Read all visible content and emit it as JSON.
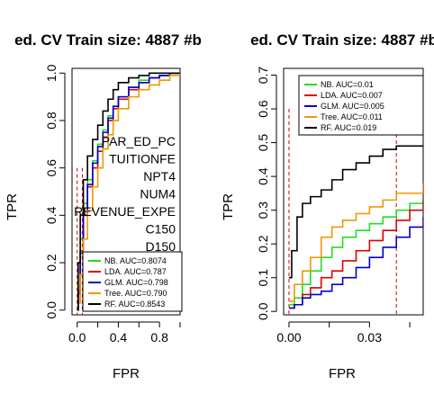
{
  "colors": {
    "NB": "#22dd22",
    "LDA": "#dd0000",
    "GLM": "#0000cc",
    "Tree": "#ee9900",
    "RF": "#000000",
    "ref_line": "#cc0000"
  },
  "chart_data": [
    {
      "type": "line",
      "title": "ed. CV  Train size:  4887  #b",
      "xlabel": "FPR",
      "ylabel": "TPR",
      "xlim": [
        -0.05,
        1.0
      ],
      "ylim": [
        -0.02,
        1.02
      ],
      "xticks": [
        "0.0",
        "0.4",
        "0.8"
      ],
      "xtick_values": [
        0.0,
        0.4,
        0.8
      ],
      "yticks": [
        "0.0",
        "0.2",
        "0.4",
        "0.6",
        "0.8",
        "1.0"
      ],
      "ytick_values": [
        0.0,
        0.2,
        0.4,
        0.6,
        0.8,
        1.0
      ],
      "ref_lines_x": [
        0.0,
        0.05
      ],
      "feature_labels": [
        "PAR_ED_PC",
        "TUITIONFE",
        "NPT4",
        "NUM4",
        "REVENUE_EXPE",
        "C150",
        "D150"
      ],
      "legend_position": "bottom-right",
      "series": [
        {
          "name": "NB. AUC=0.8074",
          "key": "NB",
          "x": [
            0,
            0.01,
            0.03,
            0.06,
            0.1,
            0.15,
            0.2,
            0.25,
            0.3,
            0.35,
            0.4,
            0.5,
            0.6,
            0.7,
            0.8,
            0.9,
            1.0
          ],
          "y": [
            0,
            0.1,
            0.3,
            0.45,
            0.55,
            0.63,
            0.7,
            0.76,
            0.82,
            0.86,
            0.9,
            0.94,
            0.97,
            0.98,
            0.99,
            1.0,
            1.0
          ]
        },
        {
          "name": "LDA. AUC=0.787",
          "key": "LDA",
          "x": [
            0,
            0.01,
            0.03,
            0.06,
            0.1,
            0.15,
            0.2,
            0.25,
            0.3,
            0.35,
            0.4,
            0.5,
            0.6,
            0.7,
            0.8,
            0.9,
            1.0
          ],
          "y": [
            0,
            0.08,
            0.25,
            0.4,
            0.52,
            0.6,
            0.67,
            0.73,
            0.8,
            0.85,
            0.89,
            0.93,
            0.96,
            0.98,
            0.99,
            1.0,
            1.0
          ]
        },
        {
          "name": "GLM. AUC=0.798",
          "key": "GLM",
          "x": [
            0,
            0.01,
            0.03,
            0.06,
            0.1,
            0.15,
            0.2,
            0.25,
            0.3,
            0.35,
            0.4,
            0.5,
            0.6,
            0.7,
            0.8,
            0.9,
            1.0
          ],
          "y": [
            0,
            0.07,
            0.24,
            0.4,
            0.53,
            0.62,
            0.69,
            0.75,
            0.81,
            0.86,
            0.9,
            0.94,
            0.96,
            0.98,
            0.99,
            1.0,
            1.0
          ]
        },
        {
          "name": "Tree. AUC=0.790",
          "key": "Tree",
          "x": [
            0,
            0.01,
            0.03,
            0.06,
            0.1,
            0.15,
            0.2,
            0.25,
            0.3,
            0.35,
            0.4,
            0.5,
            0.6,
            0.7,
            0.8,
            0.9,
            1.0
          ],
          "y": [
            0,
            0.03,
            0.15,
            0.3,
            0.42,
            0.52,
            0.6,
            0.68,
            0.74,
            0.8,
            0.85,
            0.9,
            0.93,
            0.95,
            0.97,
            0.99,
            1.0
          ]
        },
        {
          "name": "RF. AUC=0.8543",
          "key": "RF",
          "x": [
            0,
            0.01,
            0.03,
            0.06,
            0.1,
            0.15,
            0.2,
            0.25,
            0.3,
            0.35,
            0.4,
            0.5,
            0.6,
            0.7,
            0.8,
            0.9,
            1.0
          ],
          "y": [
            0,
            0.2,
            0.4,
            0.55,
            0.65,
            0.72,
            0.78,
            0.84,
            0.89,
            0.93,
            0.96,
            0.98,
            0.99,
            1.0,
            1.0,
            1.0,
            1.0
          ]
        }
      ]
    },
    {
      "type": "line",
      "title": "ed. CV  Train size:  4887  #b",
      "xlabel": "FPR",
      "ylabel": "TPR",
      "xlim": [
        -0.002,
        0.05
      ],
      "ylim": [
        -0.01,
        0.72
      ],
      "xticks": [
        "0.00",
        "0.03"
      ],
      "xtick_values": [
        0.0,
        0.03
      ],
      "yticks": [
        "0.0",
        "0.1",
        "0.2",
        "0.3",
        "0.4",
        "0.5",
        "0.6",
        "0.7"
      ],
      "ytick_values": [
        0.0,
        0.1,
        0.2,
        0.3,
        0.4,
        0.5,
        0.6,
        0.7
      ],
      "ref_lines_x": [
        0.0,
        0.04
      ],
      "legend_position": "top-right",
      "series": [
        {
          "name": "NB. AUC=0.01",
          "key": "NB",
          "x": [
            0,
            0.002,
            0.005,
            0.008,
            0.012,
            0.016,
            0.02,
            0.025,
            0.03,
            0.035,
            0.04,
            0.045,
            0.05
          ],
          "y": [
            0.02,
            0.04,
            0.08,
            0.12,
            0.16,
            0.19,
            0.22,
            0.24,
            0.26,
            0.28,
            0.3,
            0.32,
            0.33
          ]
        },
        {
          "name": "LDA. AUC=0.007",
          "key": "LDA",
          "x": [
            0,
            0.002,
            0.005,
            0.008,
            0.012,
            0.016,
            0.02,
            0.025,
            0.03,
            0.035,
            0.04,
            0.045,
            0.05
          ],
          "y": [
            0.01,
            0.02,
            0.05,
            0.07,
            0.1,
            0.12,
            0.15,
            0.18,
            0.21,
            0.24,
            0.27,
            0.3,
            0.33
          ]
        },
        {
          "name": "GLM. AUC=0.005",
          "key": "GLM",
          "x": [
            0,
            0.002,
            0.005,
            0.008,
            0.012,
            0.016,
            0.02,
            0.025,
            0.03,
            0.035,
            0.04,
            0.045,
            0.05
          ],
          "y": [
            0.01,
            0.02,
            0.04,
            0.05,
            0.06,
            0.08,
            0.1,
            0.13,
            0.16,
            0.19,
            0.22,
            0.25,
            0.28
          ]
        },
        {
          "name": "Tree. AUC=0.011",
          "key": "Tree",
          "x": [
            0,
            0.002,
            0.005,
            0.008,
            0.012,
            0.016,
            0.02,
            0.025,
            0.03,
            0.035,
            0.04,
            0.045,
            0.05
          ],
          "y": [
            0.03,
            0.08,
            0.12,
            0.16,
            0.22,
            0.25,
            0.27,
            0.29,
            0.31,
            0.33,
            0.35,
            0.35,
            0.38
          ]
        },
        {
          "name": "RF. AUC=0.019",
          "key": "RF",
          "x": [
            0,
            0.001,
            0.003,
            0.005,
            0.008,
            0.012,
            0.016,
            0.02,
            0.025,
            0.03,
            0.035,
            0.04,
            0.045,
            0.05
          ],
          "y": [
            0.1,
            0.18,
            0.28,
            0.32,
            0.34,
            0.36,
            0.39,
            0.42,
            0.44,
            0.46,
            0.48,
            0.49,
            0.49,
            0.49
          ]
        }
      ]
    }
  ]
}
